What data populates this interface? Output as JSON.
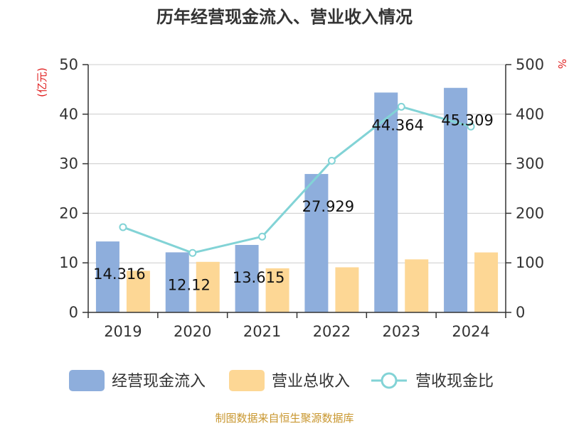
{
  "chart_data": {
    "type": "bar",
    "title": "历年经营现金流入、营业收入情况",
    "categories": [
      "2019",
      "2020",
      "2021",
      "2022",
      "2023",
      "2024"
    ],
    "series": [
      {
        "name": "经营现金流入",
        "type": "bar",
        "axis": "left",
        "color": "#8eaedc",
        "values": [
          14.316,
          12.12,
          13.615,
          27.929,
          44.364,
          45.309
        ],
        "data_labels": [
          "14.316",
          "12.12",
          "13.615",
          "27.929",
          "44.364",
          "45.309"
        ]
      },
      {
        "name": "营业总收入",
        "type": "bar",
        "axis": "left",
        "color": "#fdd795",
        "values": [
          8.4,
          10.2,
          8.9,
          9.1,
          10.7,
          12.1
        ]
      },
      {
        "name": "营收现金比",
        "type": "line",
        "axis": "right",
        "color": "#82d3d6",
        "values": [
          172,
          120,
          153,
          306,
          415,
          375
        ]
      }
    ],
    "y_left": {
      "unit": "(亿元)",
      "ylim": [
        0,
        50
      ],
      "ticks": [
        "0",
        "10",
        "20",
        "30",
        "40",
        "50"
      ]
    },
    "y_right": {
      "unit": "%",
      "ylim": [
        0,
        500
      ],
      "ticks": [
        "0",
        "100",
        "200",
        "300",
        "400",
        "500"
      ]
    },
    "grid": true,
    "legend": "bottom"
  },
  "source_note": "制图数据来自恒生聚源数据库"
}
